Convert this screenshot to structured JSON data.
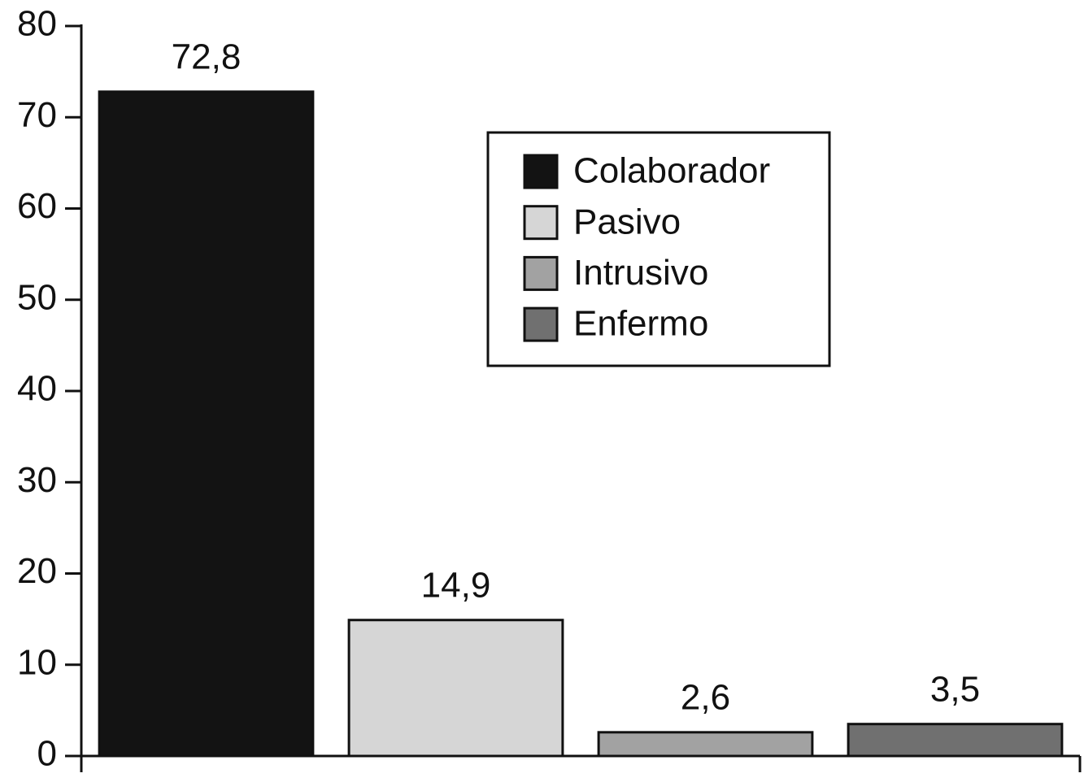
{
  "chart_data": {
    "type": "bar",
    "categories": [
      "Colaborador",
      "Pasivo",
      "Intrusivo",
      "Enfermo"
    ],
    "values": [
      72.8,
      14.9,
      2.6,
      3.5
    ],
    "value_labels": [
      "72,8",
      "14,9",
      "2,6",
      "3,5"
    ],
    "colors": [
      "#131313",
      "#d6d6d6",
      "#a2a2a2",
      "#707070"
    ],
    "ylim": [
      0,
      80
    ],
    "yticks": [
      0,
      10,
      20,
      30,
      40,
      50,
      60,
      70,
      80
    ],
    "legend": "upper right"
  }
}
